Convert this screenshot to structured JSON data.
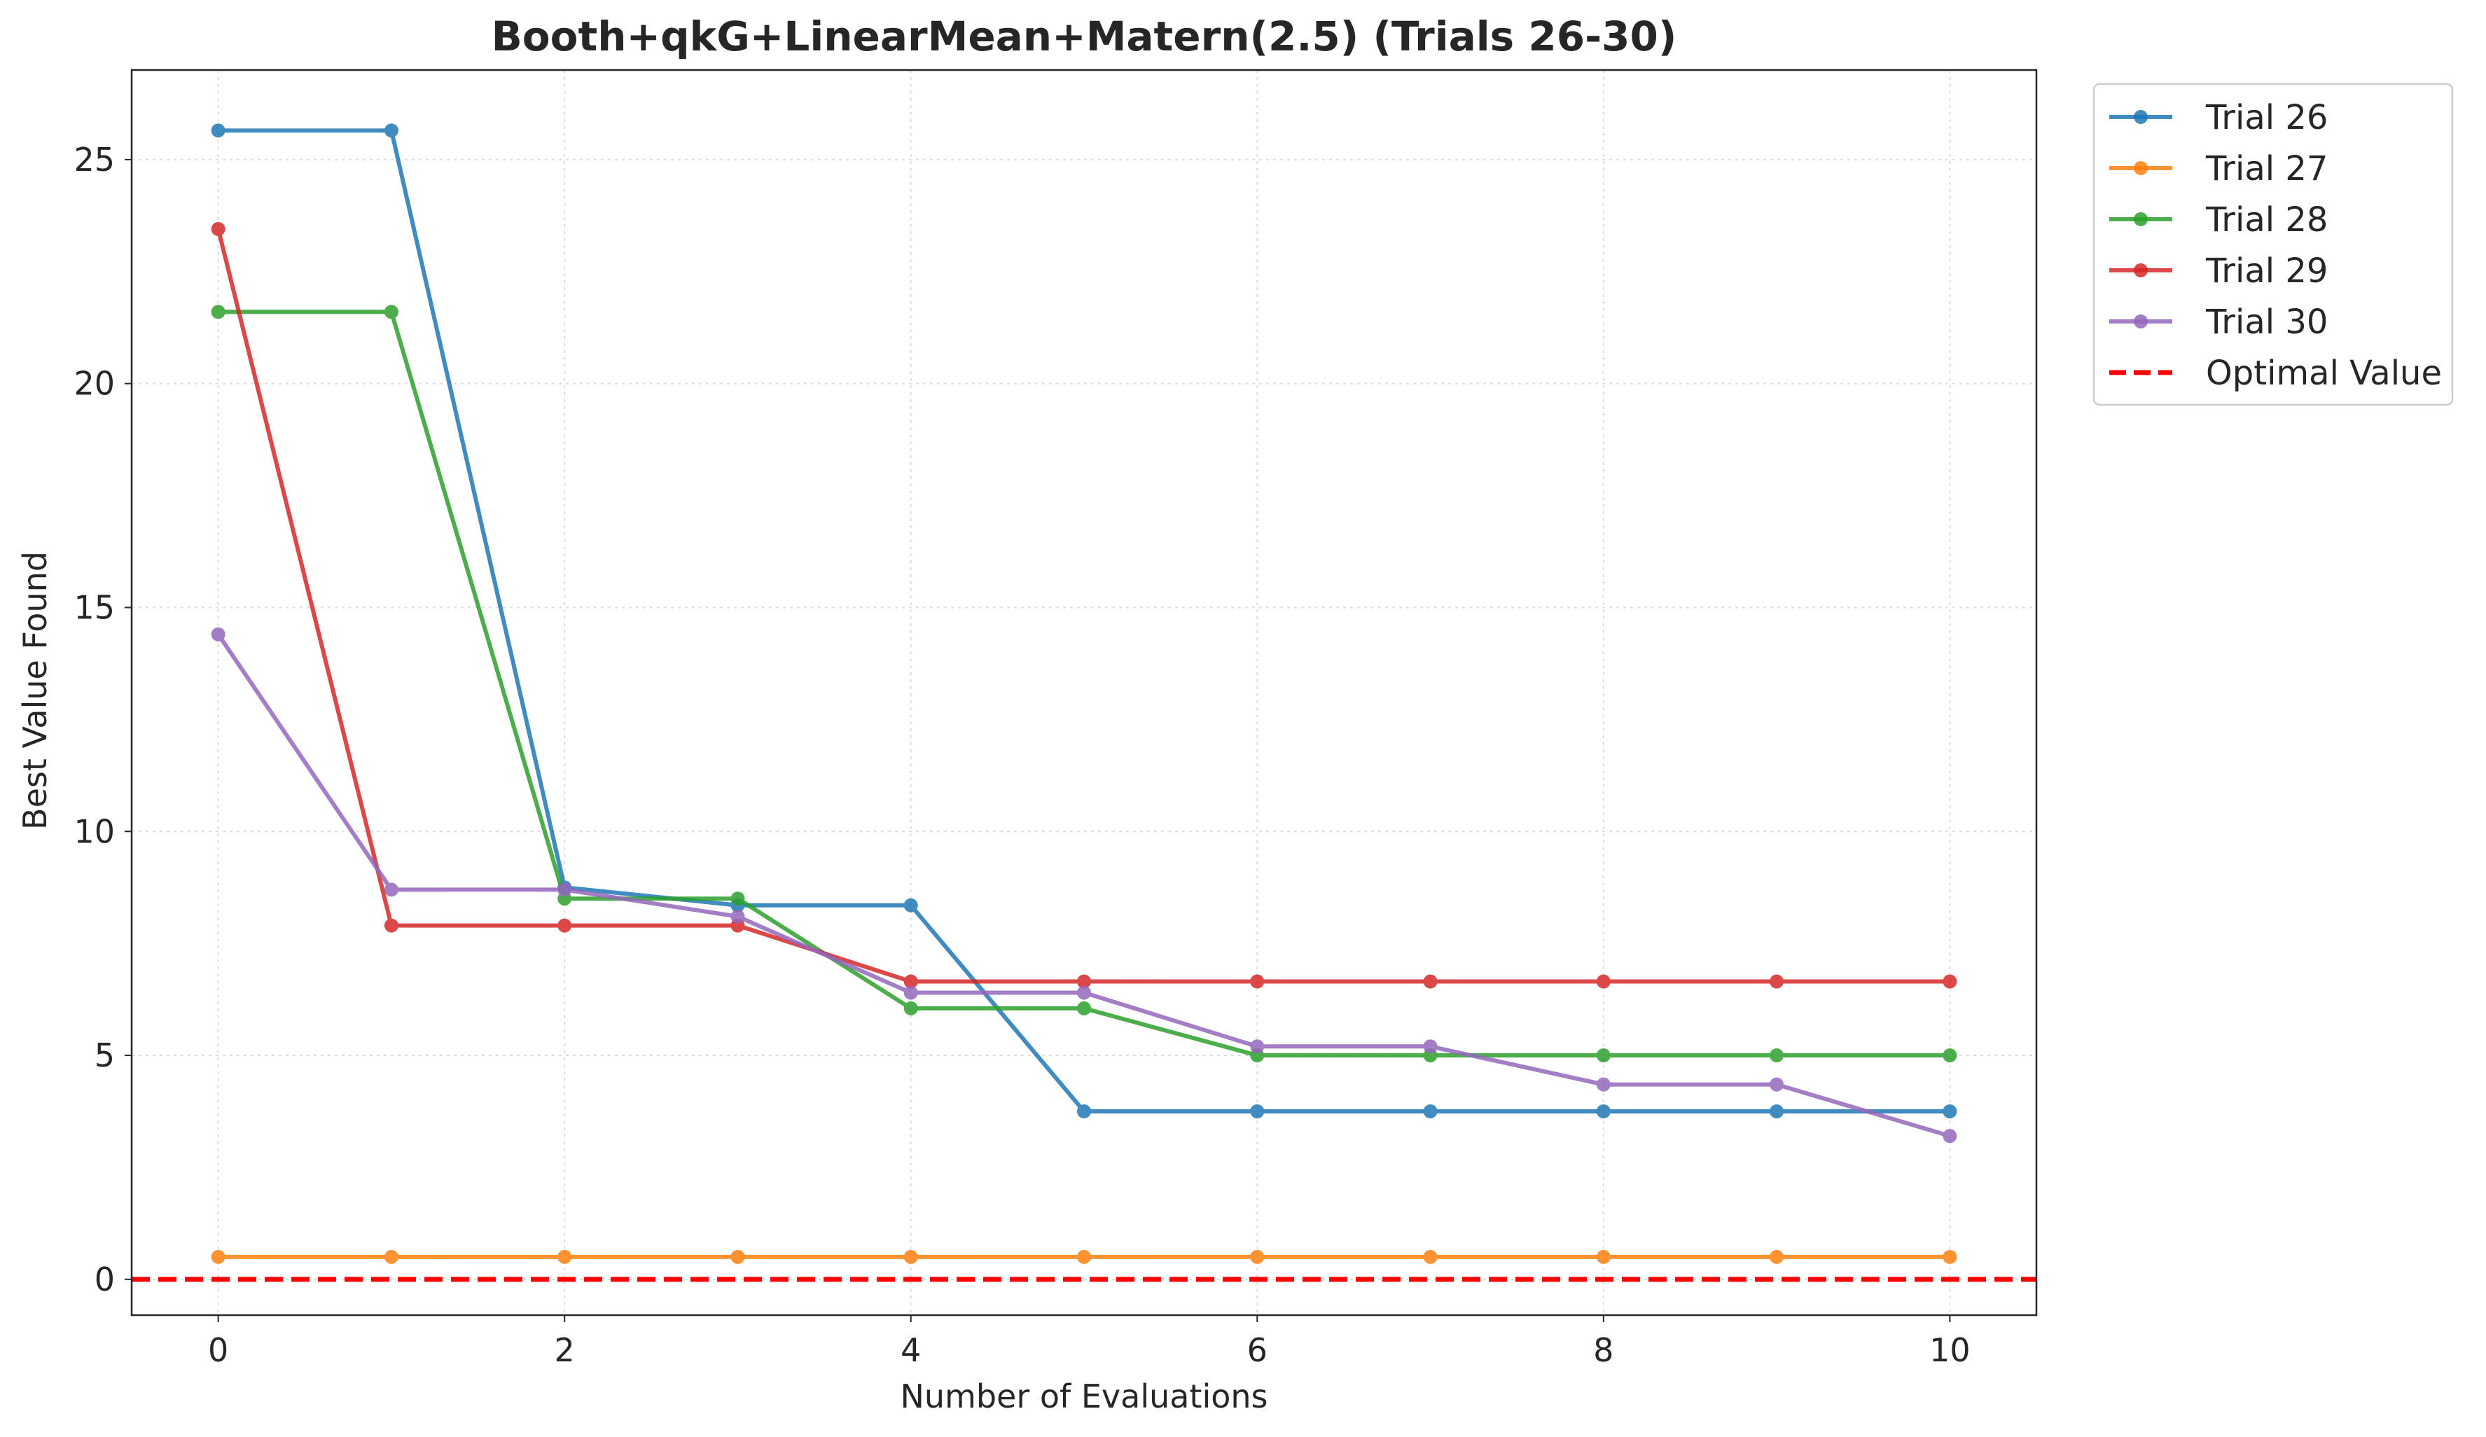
{
  "chart_data": {
    "type": "line",
    "title": "Booth+qkG+LinearMean+Matern(2.5) (Trials 26-30)",
    "xlabel": "Number of Evaluations",
    "ylabel": "Best Value Found",
    "xlim": [
      -0.5,
      10.5
    ],
    "ylim": [
      -0.8,
      27
    ],
    "xticks": [
      0,
      2,
      4,
      6,
      8,
      10
    ],
    "yticks": [
      0,
      5,
      10,
      15,
      20,
      25
    ],
    "grid": true,
    "legend_position": "outside top-right",
    "x": [
      0,
      1,
      2,
      3,
      4,
      5,
      6,
      7,
      8,
      9,
      10
    ],
    "series": [
      {
        "name": "Trial 26",
        "color": "#1f77b4",
        "values": [
          25.65,
          25.65,
          8.75,
          8.35,
          8.35,
          3.75,
          3.75,
          3.75,
          3.75,
          3.75,
          3.75
        ]
      },
      {
        "name": "Trial 27",
        "color": "#ff7f0e",
        "values": [
          0.5,
          0.5,
          0.5,
          0.5,
          0.5,
          0.5,
          0.5,
          0.5,
          0.5,
          0.5,
          0.5
        ]
      },
      {
        "name": "Trial 28",
        "color": "#2ca02c",
        "values": [
          21.6,
          21.6,
          8.5,
          8.5,
          6.05,
          6.05,
          5.0,
          5.0,
          5.0,
          5.0,
          5.0
        ]
      },
      {
        "name": "Trial 29",
        "color": "#d62728",
        "values": [
          23.45,
          7.9,
          7.9,
          7.9,
          6.65,
          6.65,
          6.65,
          6.65,
          6.65,
          6.65,
          6.65
        ]
      },
      {
        "name": "Trial 30",
        "color": "#9467bd",
        "values": [
          14.4,
          8.7,
          8.7,
          8.1,
          6.4,
          6.4,
          5.2,
          5.2,
          4.35,
          4.35,
          3.2
        ]
      }
    ],
    "reference_line": {
      "name": "Optimal Value",
      "value": 0,
      "color": "#ff0000",
      "style": "dashed"
    }
  }
}
